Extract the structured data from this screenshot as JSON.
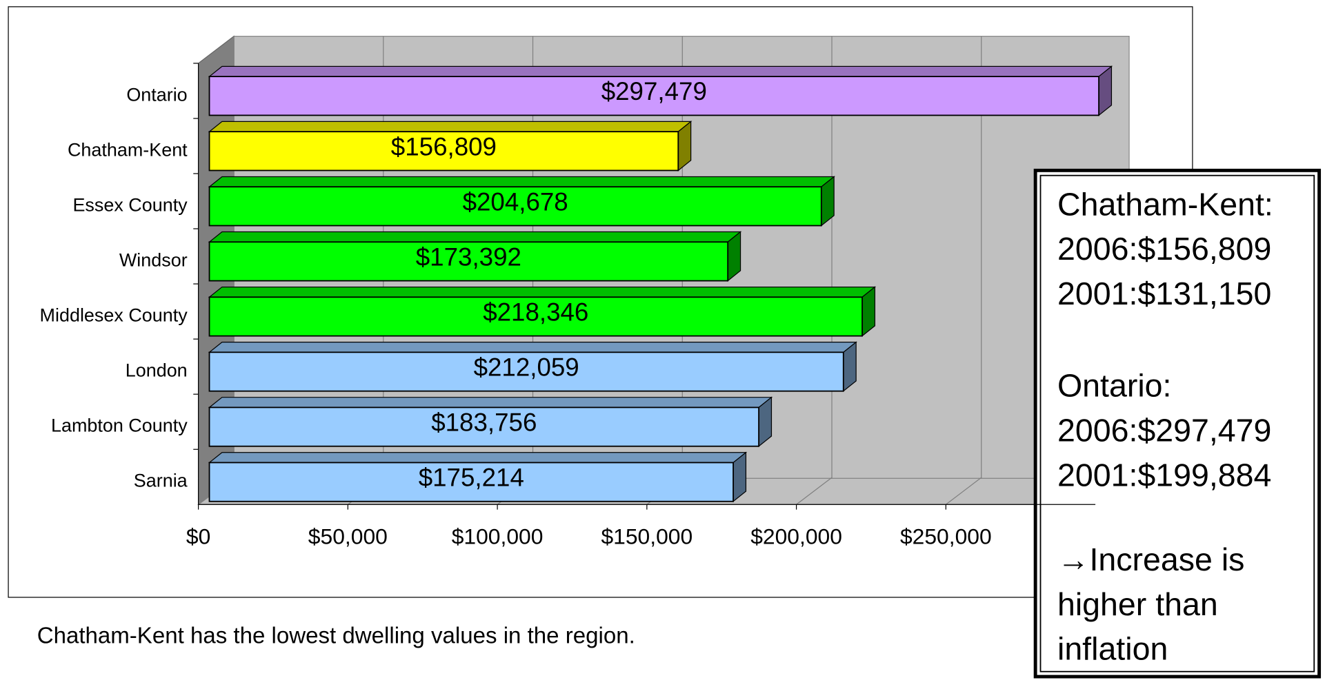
{
  "chart_data": {
    "type": "bar3d-horizontal",
    "categories": [
      "Ontario",
      "Chatham-Kent",
      "Essex County",
      "Windsor",
      "Middlesex County",
      "London",
      "Lambton County",
      "Sarnia"
    ],
    "values": [
      297479,
      156809,
      204678,
      173392,
      218346,
      212059,
      183756,
      175214
    ],
    "value_labels": [
      "$297,479",
      "$156,809",
      "$204,678",
      "$173,392",
      "$218,346",
      "$212,059",
      "$183,756",
      "$175,214"
    ],
    "colors": [
      "#cc99ff",
      "#ffff00",
      "#00ff00",
      "#00ff00",
      "#00ff00",
      "#99ccff",
      "#99ccff",
      "#99ccff"
    ],
    "xlim": [
      0,
      300000
    ],
    "xticks": [
      {
        "value": 0,
        "label": "$0"
      },
      {
        "value": 50000,
        "label": "$50,000"
      },
      {
        "value": 100000,
        "label": "$100,000"
      },
      {
        "value": 150000,
        "label": "$150,000"
      },
      {
        "value": 200000,
        "label": "$200,000"
      },
      {
        "value": 250000,
        "label": "$250,000"
      }
    ],
    "grid": true,
    "annotation": [
      [
        "Chatham-Kent:",
        "2006:$156,809",
        "2001:$131,150"
      ],
      [
        "Ontario:",
        "2006:$297,479",
        "2001:$199,884"
      ],
      [
        "→Increase is",
        "higher than",
        "inflation"
      ]
    ],
    "footnote": "Chatham-Kent has the lowest dwelling values in the region."
  }
}
